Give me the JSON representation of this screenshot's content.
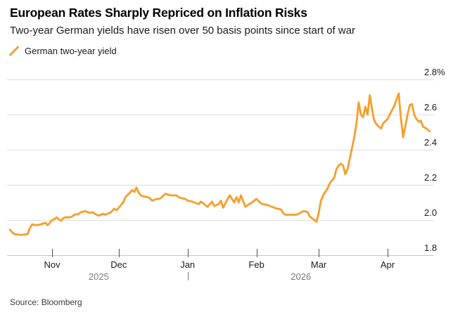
{
  "header": {
    "title": "European Rates Sharply Repriced on Inflation Risks",
    "subtitle": "Two-year German yields have risen over 50 basis points since start of war"
  },
  "legend": {
    "label": "German two-year yield"
  },
  "source": "Source: Bloomberg",
  "colors": {
    "line": "#F79E28",
    "grid": "#DCDCDC",
    "axis": "#C4C4C4",
    "tick": "#4d4d4d",
    "year": "#7a7a7a"
  },
  "chart_data": {
    "type": "line",
    "series_name": "German two-year yield",
    "unit": "%",
    "ylim": [
      1.8,
      2.8
    ],
    "grid": "horizontal-only",
    "legend_position": "top-left",
    "y_axis_side": "right",
    "y_ticks": [
      {
        "v": 2.8,
        "label": "2.8%"
      },
      {
        "v": 2.6,
        "label": "2.6"
      },
      {
        "v": 2.4,
        "label": "2.4"
      },
      {
        "v": 2.2,
        "label": "2.2"
      },
      {
        "v": 2.0,
        "label": "2.0"
      },
      {
        "v": 1.8,
        "label": "1.8"
      }
    ],
    "x_range": [
      "2025-10-13",
      "2026-04-20"
    ],
    "x_ticks": [
      {
        "date": "2025-11-01",
        "label": "Nov"
      },
      {
        "date": "2025-12-01",
        "label": "Dec"
      },
      {
        "date": "2026-01-01",
        "label": "Jan"
      },
      {
        "date": "2026-02-01",
        "label": "Feb"
      },
      {
        "date": "2026-03-01",
        "label": "Mar"
      },
      {
        "date": "2026-04-01",
        "label": "Apr"
      }
    ],
    "year_labels": [
      {
        "date": "2025-11-22",
        "label": "2025"
      },
      {
        "date": "2026-02-21",
        "label": "2026"
      }
    ],
    "year_divider_date": "2026-01-01",
    "points": [
      [
        "2025-10-13",
        1.945
      ],
      [
        "2025-10-14",
        1.93
      ],
      [
        "2025-10-15",
        1.92
      ],
      [
        "2025-10-18",
        1.915
      ],
      [
        "2025-10-21",
        1.92
      ],
      [
        "2025-10-22",
        1.955
      ],
      [
        "2025-10-23",
        1.975
      ],
      [
        "2025-10-25",
        1.97
      ],
      [
        "2025-10-27",
        1.975
      ],
      [
        "2025-10-29",
        1.985
      ],
      [
        "2025-10-30",
        1.97
      ],
      [
        "2025-10-31",
        1.985
      ],
      [
        "2025-11-01",
        2.0
      ],
      [
        "2025-11-02",
        2.005
      ],
      [
        "2025-11-03",
        2.015
      ],
      [
        "2025-11-05",
        1.995
      ],
      [
        "2025-11-06",
        2.01
      ],
      [
        "2025-11-07",
        2.015
      ],
      [
        "2025-11-09",
        2.015
      ],
      [
        "2025-11-10",
        2.02
      ],
      [
        "2025-11-11",
        2.03
      ],
      [
        "2025-11-13",
        2.035
      ],
      [
        "2025-11-14",
        2.045
      ],
      [
        "2025-11-16",
        2.05
      ],
      [
        "2025-11-18",
        2.04
      ],
      [
        "2025-11-19",
        2.045
      ],
      [
        "2025-11-21",
        2.03
      ],
      [
        "2025-11-22",
        2.025
      ],
      [
        "2025-11-24",
        2.035
      ],
      [
        "2025-11-25",
        2.03
      ],
      [
        "2025-11-27",
        2.04
      ],
      [
        "2025-11-28",
        2.05
      ],
      [
        "2025-11-29",
        2.065
      ],
      [
        "2025-11-30",
        2.055
      ],
      [
        "2025-12-01",
        2.07
      ],
      [
        "2025-12-03",
        2.1
      ],
      [
        "2025-12-04",
        2.13
      ],
      [
        "2025-12-06",
        2.155
      ],
      [
        "2025-12-07",
        2.17
      ],
      [
        "2025-12-08",
        2.16
      ],
      [
        "2025-12-09",
        2.185
      ],
      [
        "2025-12-10",
        2.155
      ],
      [
        "2025-12-11",
        2.14
      ],
      [
        "2025-12-12",
        2.135
      ],
      [
        "2025-12-14",
        2.13
      ],
      [
        "2025-12-15",
        2.125
      ],
      [
        "2025-12-16",
        2.11
      ],
      [
        "2025-12-18",
        2.12
      ],
      [
        "2025-12-19",
        2.12
      ],
      [
        "2025-12-20",
        2.125
      ],
      [
        "2025-12-22",
        2.15
      ],
      [
        "2025-12-23",
        2.145
      ],
      [
        "2025-12-25",
        2.14
      ],
      [
        "2025-12-27",
        2.14
      ],
      [
        "2025-12-28",
        2.13
      ],
      [
        "2025-12-29",
        2.125
      ],
      [
        "2025-12-31",
        2.12
      ],
      [
        "2026-01-01",
        2.11
      ],
      [
        "2026-01-03",
        2.105
      ],
      [
        "2026-01-04",
        2.1
      ],
      [
        "2026-01-06",
        2.09
      ],
      [
        "2026-01-07",
        2.105
      ],
      [
        "2026-01-08",
        2.095
      ],
      [
        "2026-01-10",
        2.075
      ],
      [
        "2026-01-11",
        2.09
      ],
      [
        "2026-01-12",
        2.105
      ],
      [
        "2026-01-13",
        2.08
      ],
      [
        "2026-01-15",
        2.09
      ],
      [
        "2026-01-16",
        2.11
      ],
      [
        "2026-01-17",
        2.07
      ],
      [
        "2026-01-19",
        2.12
      ],
      [
        "2026-01-20",
        2.14
      ],
      [
        "2026-01-22",
        2.1
      ],
      [
        "2026-01-23",
        2.13
      ],
      [
        "2026-01-24",
        2.1
      ],
      [
        "2026-01-25",
        2.14
      ],
      [
        "2026-01-27",
        2.075
      ],
      [
        "2026-01-28",
        2.085
      ],
      [
        "2026-01-30",
        2.1
      ],
      [
        "2026-02-01",
        2.12
      ],
      [
        "2026-02-03",
        2.095
      ],
      [
        "2026-02-04",
        2.09
      ],
      [
        "2026-02-06",
        2.085
      ],
      [
        "2026-02-07",
        2.08
      ],
      [
        "2026-02-09",
        2.07
      ],
      [
        "2026-02-10",
        2.065
      ],
      [
        "2026-02-12",
        2.06
      ],
      [
        "2026-02-13",
        2.04
      ],
      [
        "2026-02-14",
        2.03
      ],
      [
        "2026-02-16",
        2.03
      ],
      [
        "2026-02-18",
        2.03
      ],
      [
        "2026-02-19",
        2.03
      ],
      [
        "2026-02-20",
        2.035
      ],
      [
        "2026-02-22",
        2.05
      ],
      [
        "2026-02-23",
        2.05
      ],
      [
        "2026-02-24",
        2.045
      ],
      [
        "2026-02-25",
        2.02
      ],
      [
        "2026-02-27",
        2.0
      ],
      [
        "2026-02-28",
        1.99
      ],
      [
        "2026-03-01",
        2.04
      ],
      [
        "2026-03-02",
        2.11
      ],
      [
        "2026-03-03",
        2.14
      ],
      [
        "2026-03-04",
        2.16
      ],
      [
        "2026-03-05",
        2.18
      ],
      [
        "2026-03-06",
        2.21
      ],
      [
        "2026-03-07",
        2.225
      ],
      [
        "2026-03-08",
        2.24
      ],
      [
        "2026-03-09",
        2.29
      ],
      [
        "2026-03-10",
        2.31
      ],
      [
        "2026-03-11",
        2.32
      ],
      [
        "2026-03-12",
        2.31
      ],
      [
        "2026-03-13",
        2.26
      ],
      [
        "2026-03-14",
        2.29
      ],
      [
        "2026-03-15",
        2.35
      ],
      [
        "2026-03-16",
        2.41
      ],
      [
        "2026-03-17",
        2.47
      ],
      [
        "2026-03-18",
        2.55
      ],
      [
        "2026-03-19",
        2.67
      ],
      [
        "2026-03-20",
        2.6
      ],
      [
        "2026-03-21",
        2.585
      ],
      [
        "2026-03-22",
        2.645
      ],
      [
        "2026-03-23",
        2.6
      ],
      [
        "2026-03-24",
        2.71
      ],
      [
        "2026-03-25",
        2.63
      ],
      [
        "2026-03-26",
        2.565
      ],
      [
        "2026-03-27",
        2.545
      ],
      [
        "2026-03-29",
        2.52
      ],
      [
        "2026-03-30",
        2.55
      ],
      [
        "2026-04-01",
        2.575
      ],
      [
        "2026-04-02",
        2.6
      ],
      [
        "2026-04-04",
        2.65
      ],
      [
        "2026-04-06",
        2.72
      ],
      [
        "2026-04-07",
        2.58
      ],
      [
        "2026-04-08",
        2.47
      ],
      [
        "2026-04-10",
        2.6
      ],
      [
        "2026-04-11",
        2.655
      ],
      [
        "2026-04-12",
        2.66
      ],
      [
        "2026-04-13",
        2.6
      ],
      [
        "2026-04-14",
        2.575
      ],
      [
        "2026-04-15",
        2.56
      ],
      [
        "2026-04-16",
        2.565
      ],
      [
        "2026-04-17",
        2.53
      ],
      [
        "2026-04-18",
        2.525
      ],
      [
        "2026-04-20",
        2.505
      ]
    ]
  }
}
